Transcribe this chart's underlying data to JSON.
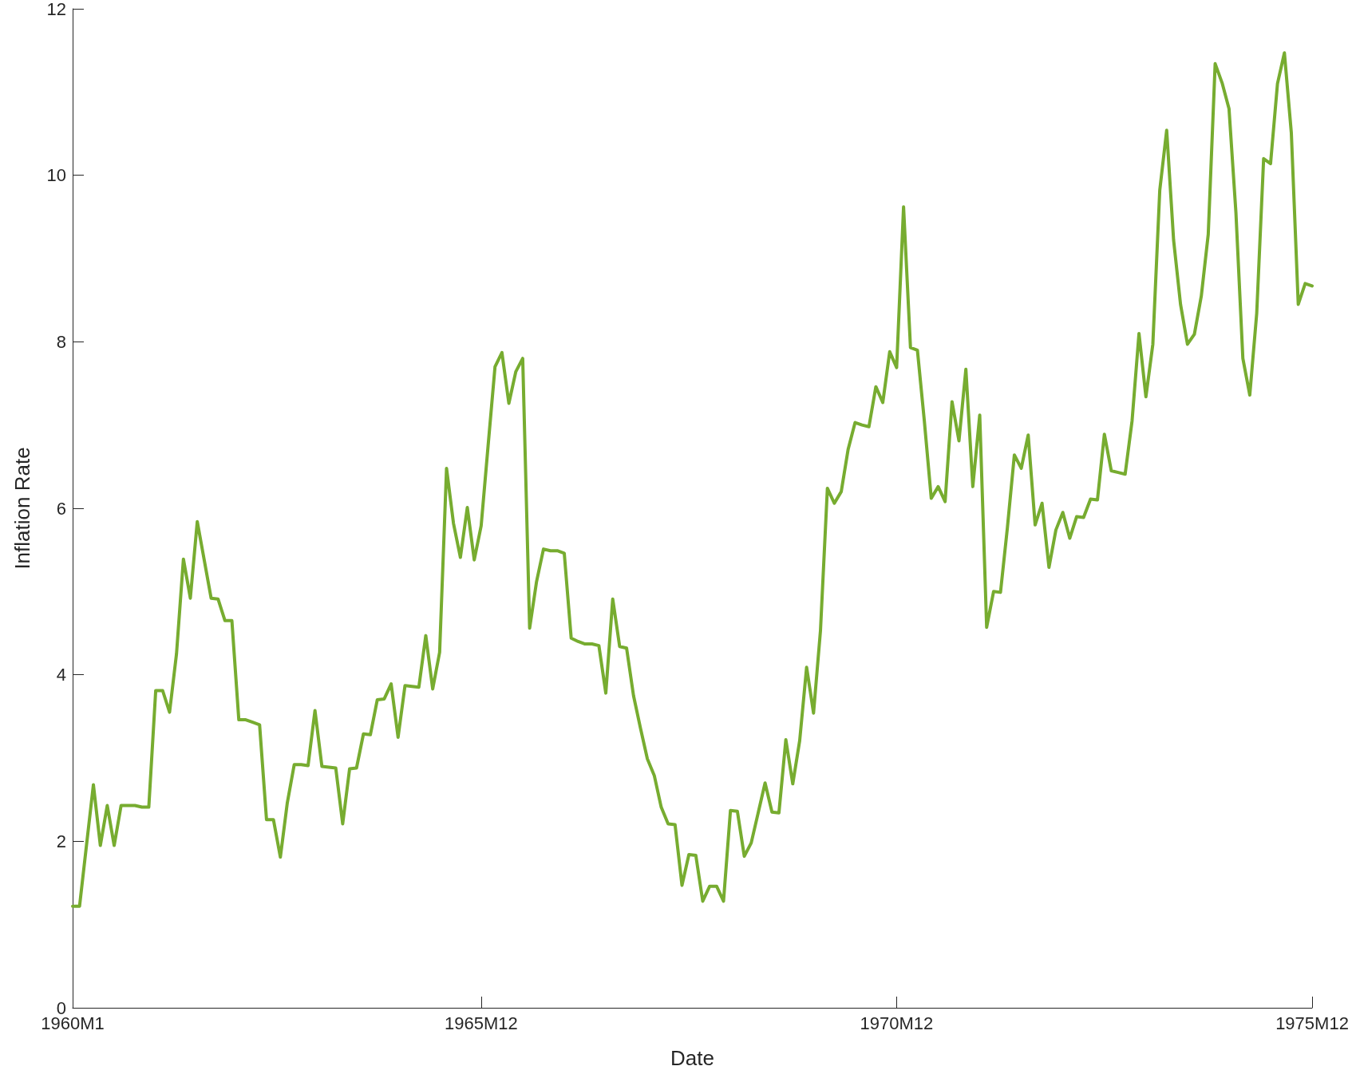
{
  "chart_data": {
    "type": "line",
    "xlabel": "Date",
    "ylabel": "Inflation Rate",
    "categories": [
      "1960M1",
      null,
      null,
      null,
      null,
      null,
      null,
      null,
      null,
      null,
      null,
      null,
      null,
      null,
      null,
      null,
      null,
      null,
      null,
      null,
      null,
      null,
      null,
      null,
      null,
      null,
      null,
      null,
      null,
      null,
      null,
      null,
      null,
      null,
      null,
      null,
      null,
      null,
      null,
      null,
      null,
      null,
      null,
      null,
      null,
      null,
      null,
      null,
      null,
      null,
      null,
      null,
      null,
      null,
      null,
      null,
      null,
      null,
      null,
      "1965M12",
      null,
      null,
      null,
      null,
      null,
      null,
      null,
      null,
      null,
      null,
      null,
      null,
      null,
      null,
      null,
      null,
      null,
      null,
      null,
      null,
      null,
      null,
      null,
      null,
      null,
      null,
      null,
      null,
      null,
      null,
      null,
      null,
      null,
      null,
      null,
      null,
      null,
      null,
      null,
      null,
      null,
      null,
      null,
      null,
      null,
      null,
      null,
      null,
      null,
      null,
      null,
      null,
      null,
      null,
      null,
      null,
      null,
      null,
      null,
      "1970M12",
      null,
      null,
      null,
      null,
      null,
      null,
      null,
      null,
      null,
      null,
      null,
      null,
      null,
      null,
      null,
      null,
      null,
      null,
      null,
      null,
      null,
      null,
      null,
      null,
      null,
      null,
      null,
      null,
      null,
      null,
      null,
      null,
      null,
      null,
      null,
      null,
      null,
      null,
      null,
      null,
      null,
      null,
      null,
      null,
      null,
      null,
      null,
      null,
      null,
      null,
      null,
      null,
      null,
      null,
      null,
      null,
      null,
      null,
      null,
      "1975M12"
    ],
    "ylim": [
      0,
      12
    ],
    "yticks": [
      0,
      2,
      4,
      6,
      8,
      10,
      12
    ],
    "grid": false,
    "marker": "none",
    "line_style": "solid",
    "series": [
      {
        "color": "#77ac30",
        "values": [
          1.22,
          1.22,
          1.95,
          2.68,
          1.95,
          2.43,
          1.95,
          2.43,
          2.43,
          2.43,
          2.41,
          2.41,
          3.81,
          3.81,
          3.55,
          4.25,
          5.39,
          4.92,
          5.84,
          5.38,
          4.92,
          4.91,
          4.65,
          4.65,
          3.46,
          3.46,
          3.43,
          3.4,
          2.26,
          2.26,
          1.81,
          2.46,
          2.92,
          2.92,
          2.91,
          3.57,
          2.9,
          2.89,
          2.88,
          2.21,
          2.87,
          2.88,
          3.29,
          3.28,
          3.7,
          3.71,
          3.89,
          3.25,
          3.87,
          3.86,
          3.85,
          4.47,
          3.83,
          4.27,
          6.48,
          5.82,
          5.41,
          6.01,
          5.38,
          5.79,
          6.75,
          7.7,
          7.87,
          7.26,
          7.64,
          7.8,
          4.56,
          5.12,
          5.51,
          5.49,
          5.49,
          5.46,
          4.44,
          4.4,
          4.37,
          4.37,
          4.35,
          3.78,
          4.91,
          4.34,
          4.32,
          3.75,
          3.36,
          2.99,
          2.79,
          2.41,
          2.21,
          2.2,
          1.47,
          1.84,
          1.83,
          1.28,
          1.46,
          1.46,
          1.28,
          2.37,
          2.36,
          1.82,
          1.98,
          2.34,
          2.7,
          2.35,
          2.34,
          3.22,
          2.69,
          3.21,
          4.09,
          3.54,
          4.53,
          6.24,
          6.06,
          6.2,
          6.71,
          7.03,
          7.0,
          6.98,
          7.46,
          7.27,
          7.88,
          7.69,
          9.62,
          7.93,
          7.9,
          7.05,
          6.12,
          6.26,
          6.08,
          7.28,
          6.81,
          7.67,
          6.26,
          7.12,
          4.57,
          5.0,
          4.99,
          5.77,
          6.64,
          6.48,
          6.88,
          5.8,
          6.06,
          5.29,
          5.74,
          5.95,
          5.64,
          5.9,
          5.89,
          6.11,
          6.1,
          6.89,
          6.45,
          6.43,
          6.41,
          7.05,
          8.1,
          7.34,
          7.97,
          9.82,
          10.54,
          9.22,
          8.45,
          7.97,
          8.09,
          8.55,
          9.29,
          11.34,
          11.11,
          10.8,
          9.55,
          7.8,
          7.36,
          8.34,
          10.2,
          10.14,
          11.1,
          11.47,
          10.51,
          8.45,
          8.7,
          8.67
        ]
      }
    ]
  }
}
